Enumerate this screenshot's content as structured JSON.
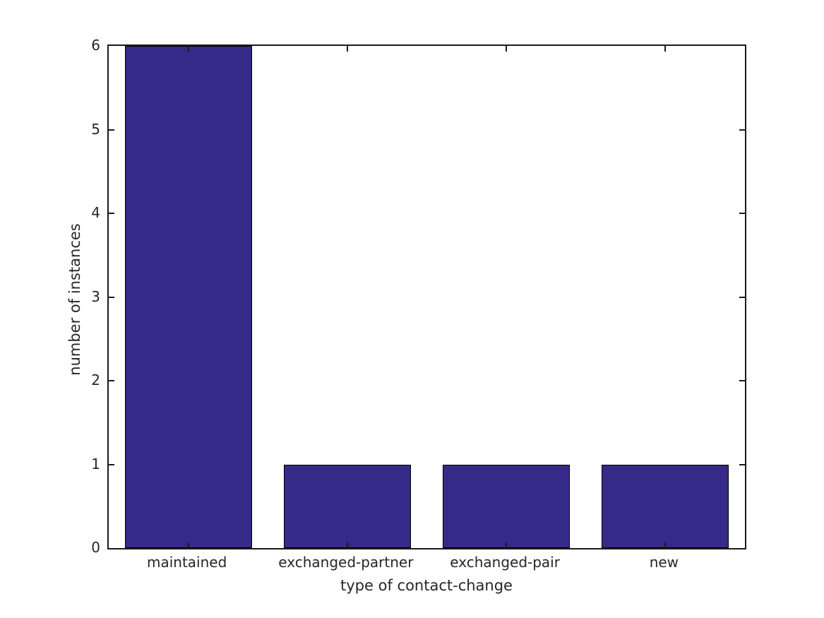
{
  "figure": {
    "background": "#ffffff"
  },
  "chart_data": {
    "type": "bar",
    "categories": [
      "maintained",
      "exchanged-partner",
      "exchanged-pair",
      "new"
    ],
    "values": [
      6,
      1,
      1,
      1
    ],
    "xlabel": "type of contact-change",
    "ylabel": "number of instances",
    "ylim": [
      0,
      6
    ],
    "yticks": [
      0,
      1,
      2,
      3,
      4,
      5,
      6
    ],
    "bar_width_fraction": 0.8,
    "bar_color": "#352a87",
    "bar_edge_color": "#000000",
    "axis_color": "#1a1a1a",
    "text_color": "#262626",
    "grid": false,
    "box": true,
    "tick_direction": "in",
    "legend": null,
    "title": ""
  }
}
